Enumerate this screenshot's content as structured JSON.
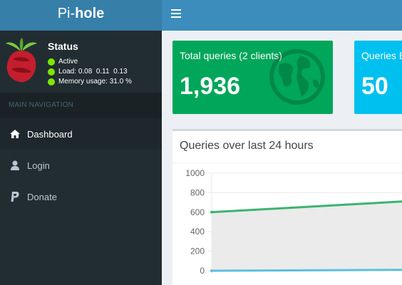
{
  "app": {
    "logo_prefix": "Pi-",
    "logo_bold": "hole"
  },
  "sidebar": {
    "status_title": "Status",
    "status_active": "Active",
    "load_label": "Load:",
    "load_values": "0.08  0.11  0.13",
    "memory_label": "Memory usage:",
    "memory_value": "31.0 %",
    "nav_header": "MAIN NAVIGATION",
    "items": [
      {
        "label": "Dashboard",
        "icon": "home-icon",
        "active": true
      },
      {
        "label": "Login",
        "icon": "user-icon",
        "active": false
      },
      {
        "label": "Donate",
        "icon": "paypal-icon",
        "active": false
      }
    ]
  },
  "stats": {
    "total_queries_label": "Total queries (2 clients)",
    "total_queries_value": "1,936",
    "queries_blocked_label": "Queries B",
    "queries_blocked_value": "50"
  },
  "panel": {
    "title": "Queries over last 24 hours"
  },
  "colors": {
    "topbar": "#3c8dbc",
    "sidebar": "#222d32",
    "green": "#00a65a",
    "cyan": "#00c0ef",
    "series_total": "#3cb371",
    "series_blocked": "#5bc0de"
  },
  "chart_data": {
    "type": "area",
    "title": "Queries over last 24 hours",
    "ylim": [
      0,
      1000
    ],
    "yticks": [
      "1000",
      "800",
      "600",
      "400",
      "200",
      "0"
    ],
    "series": [
      {
        "values": [
          600,
          720
        ]
      },
      {
        "values": [
          0,
          10
        ]
      }
    ],
    "grid": true
  }
}
